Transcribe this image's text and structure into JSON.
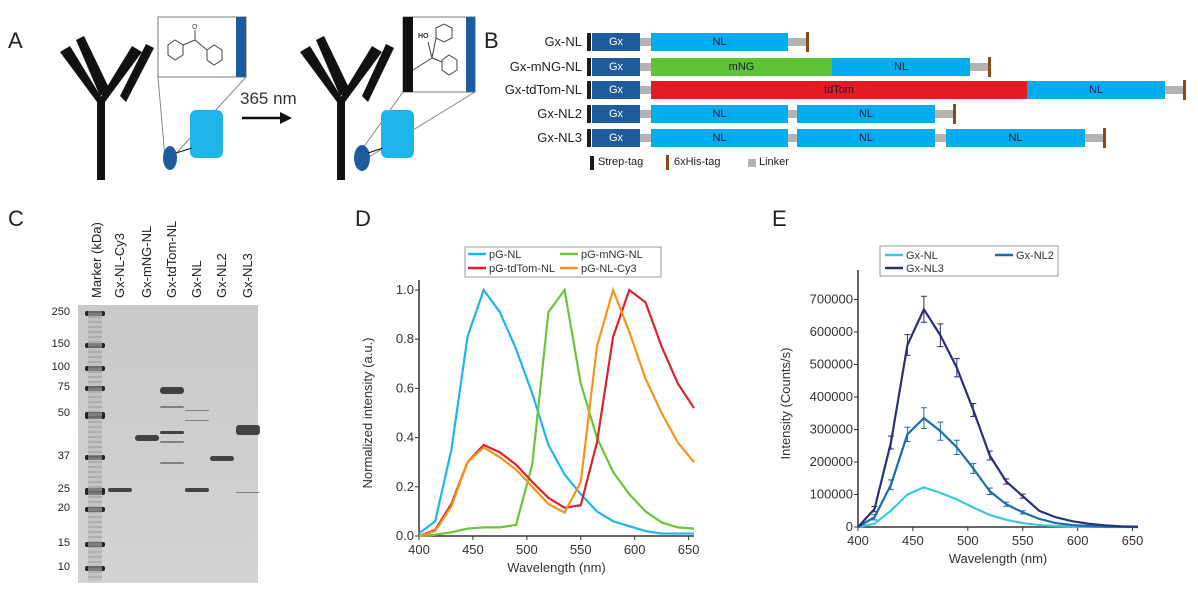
{
  "panels": {
    "A": "A",
    "B": "B",
    "C": "C",
    "D": "D",
    "E": "E"
  },
  "panel_a": {
    "arrow_label": "365 nm",
    "hydroxyl_label": "HO",
    "carbonyl_label": "O"
  },
  "panel_b": {
    "rows": [
      {
        "label": "Gx-NL",
        "segments": [
          {
            "name": "Gx",
            "color": "#1f5c9e"
          },
          {
            "name": "NL",
            "color": "#00aeef"
          }
        ]
      },
      {
        "label": "Gx-mNG-NL",
        "segments": [
          {
            "name": "Gx",
            "color": "#1f5c9e"
          },
          {
            "name": "mNG",
            "color": "#5fc435"
          },
          {
            "name": "NL",
            "color": "#00aeef"
          }
        ]
      },
      {
        "label": "Gx-tdTom-NL",
        "segments": [
          {
            "name": "Gx",
            "color": "#1f5c9e"
          },
          {
            "name": "tdTom",
            "color": "#e41b23"
          },
          {
            "name": "NL",
            "color": "#00aeef"
          }
        ]
      },
      {
        "label": "Gx-NL2",
        "segments": [
          {
            "name": "Gx",
            "color": "#1f5c9e"
          },
          {
            "name": "NL",
            "color": "#00aeef"
          },
          {
            "name": "NL",
            "color": "#00aeef"
          }
        ]
      },
      {
        "label": "Gx-NL3",
        "segments": [
          {
            "name": "Gx",
            "color": "#1f5c9e"
          },
          {
            "name": "NL",
            "color": "#00aeef"
          },
          {
            "name": "NL",
            "color": "#00aeef"
          },
          {
            "name": "NL",
            "color": "#00aeef"
          }
        ]
      }
    ],
    "legend": {
      "strep": "Strep-tag",
      "his": "6xHis-tag",
      "linker": "Linker"
    }
  },
  "panel_c": {
    "lanes": [
      "Marker (kDa)",
      "Gx-NL-Cy3",
      "Gx-mNG-NL",
      "Gx-tdTom-NL",
      "Gx-NL",
      "Gx-NL2",
      "Gx-NL3"
    ],
    "marker_kda": [
      "250",
      "150",
      "100",
      "75",
      "50",
      "37",
      "25",
      "20",
      "15",
      "10"
    ]
  },
  "chart_data": [
    {
      "panel": "D",
      "type": "line",
      "xlabel": "Wavelength (nm)",
      "ylabel": "Normalized intensity (a.u.)",
      "xlim": [
        400,
        655
      ],
      "ylim": [
        0,
        1.0
      ],
      "xticks": [
        "400",
        "450",
        "500",
        "550",
        "600",
        "650"
      ],
      "yticks": [
        "0.0",
        "0.2",
        "0.4",
        "0.6",
        "0.8",
        "1.0"
      ],
      "legend": "top",
      "x": [
        400,
        415,
        430,
        445,
        460,
        475,
        490,
        505,
        520,
        535,
        550,
        565,
        580,
        595,
        610,
        625,
        640,
        655
      ],
      "series": [
        {
          "name": "pG-NL",
          "color": "#1fb5ea",
          "values": [
            0.01,
            0.06,
            0.35,
            0.81,
            1.0,
            0.91,
            0.76,
            0.58,
            0.37,
            0.25,
            0.17,
            0.1,
            0.06,
            0.04,
            0.02,
            0.01,
            0.01,
            0.01
          ]
        },
        {
          "name": "pG-mNG-NL",
          "color": "#6cc33c",
          "values": [
            0,
            0.005,
            0.015,
            0.03,
            0.035,
            0.035,
            0.045,
            0.29,
            0.91,
            1.0,
            0.62,
            0.4,
            0.26,
            0.17,
            0.1,
            0.055,
            0.035,
            0.03
          ]
        },
        {
          "name": "pG-tdTom-NL",
          "color": "#d9232e",
          "values": [
            0,
            0.025,
            0.13,
            0.3,
            0.37,
            0.34,
            0.29,
            0.22,
            0.155,
            0.115,
            0.125,
            0.38,
            0.81,
            1.0,
            0.95,
            0.77,
            0.62,
            0.52
          ]
        },
        {
          "name": "pG-NL-Cy3",
          "color": "#f7941d",
          "values": [
            0,
            0.02,
            0.12,
            0.3,
            0.36,
            0.32,
            0.27,
            0.2,
            0.13,
            0.095,
            0.22,
            0.77,
            1.0,
            0.83,
            0.64,
            0.5,
            0.38,
            0.3
          ]
        }
      ]
    },
    {
      "panel": "E",
      "type": "line",
      "xlabel": "Wavelength (nm)",
      "ylabel": "Intensity (Counts/s)",
      "xlim": [
        400,
        655
      ],
      "ylim": [
        0,
        760000
      ],
      "xticks": [
        "400",
        "450",
        "500",
        "550",
        "600",
        "650"
      ],
      "yticks": [
        "0",
        "100000",
        "200000",
        "300000",
        "400000",
        "500000",
        "600000",
        "700000"
      ],
      "legend": "top",
      "x": [
        400,
        415,
        430,
        445,
        460,
        475,
        490,
        505,
        520,
        535,
        550,
        565,
        580,
        595,
        610,
        625,
        640,
        655
      ],
      "series": [
        {
          "name": "Gx-NL",
          "color": "#3cc7dc",
          "values": [
            0,
            10000,
            50000,
            100000,
            122000,
            105000,
            85000,
            60000,
            37000,
            22000,
            12000,
            6000,
            3000,
            1500,
            500,
            0,
            0,
            0
          ]
        },
        {
          "name": "Gx-NL2",
          "color": "#1a6fa8",
          "values": [
            0,
            30000,
            130000,
            285000,
            335000,
            295000,
            245000,
            180000,
            110000,
            70000,
            45000,
            25000,
            12000,
            6000,
            3000,
            1000,
            500,
            0
          ],
          "errors": [
            0,
            8000,
            15000,
            22000,
            32000,
            28000,
            22000,
            15000,
            10000,
            6000,
            5000,
            0,
            0,
            0,
            0,
            0,
            0,
            0
          ]
        },
        {
          "name": "Gx-NL3",
          "color": "#2c2f7c",
          "values": [
            0,
            55000,
            260000,
            560000,
            670000,
            590000,
            490000,
            360000,
            220000,
            140000,
            95000,
            50000,
            30000,
            18000,
            10000,
            5000,
            2000,
            1000
          ],
          "errors": [
            0,
            8000,
            20000,
            32000,
            40000,
            35000,
            28000,
            20000,
            14000,
            8000,
            6000,
            0,
            0,
            0,
            0,
            0,
            0,
            0
          ]
        }
      ]
    }
  ]
}
